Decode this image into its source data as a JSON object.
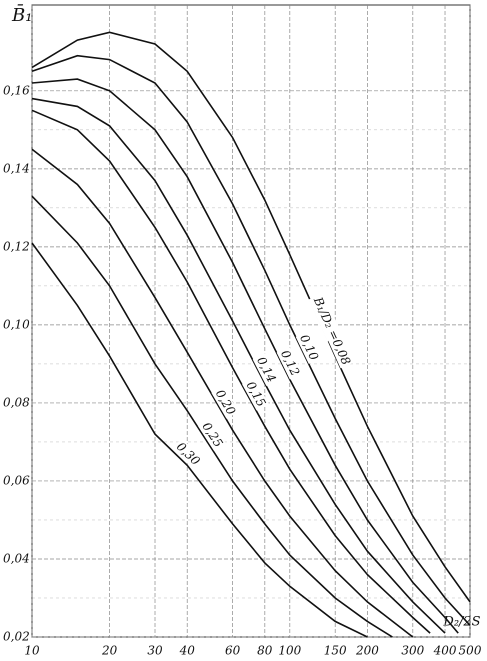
{
  "chart_data": {
    "type": "line",
    "y_label": "B̄₁",
    "x_label": "D₂/2S",
    "annotation": "B₁/D₂ =",
    "log_x": true,
    "grid": true,
    "xlim": [
      10,
      500
    ],
    "ylim": [
      0.02,
      0.182
    ],
    "xticks": [
      10,
      20,
      30,
      40,
      60,
      80,
      100,
      150,
      200,
      300,
      400,
      500
    ],
    "yticks": [
      {
        "value": 0.02,
        "label": "0,02"
      },
      {
        "value": 0.04,
        "label": "0,04"
      },
      {
        "value": 0.06,
        "label": "0,06"
      },
      {
        "value": 0.08,
        "label": "0,08"
      },
      {
        "value": 0.1,
        "label": "0,10"
      },
      {
        "value": 0.12,
        "label": "0,12"
      },
      {
        "value": 0.14,
        "label": "0,14"
      },
      {
        "value": 0.16,
        "label": "0,16"
      }
    ],
    "series": [
      {
        "name": "0,08",
        "color": "#111",
        "x": [
          10,
          15,
          20,
          30,
          40,
          60,
          80,
          100,
          150,
          200,
          300,
          400,
          500
        ],
        "values": [
          0.166,
          0.173,
          0.175,
          0.172,
          0.165,
          0.148,
          0.132,
          0.118,
          0.092,
          0.074,
          0.051,
          0.038,
          0.029
        ]
      },
      {
        "name": "0,10",
        "color": "#111",
        "x": [
          10,
          15,
          20,
          30,
          40,
          60,
          80,
          100,
          150,
          200,
          300,
          400,
          500
        ],
        "values": [
          0.165,
          0.169,
          0.168,
          0.162,
          0.152,
          0.131,
          0.114,
          0.1,
          0.076,
          0.06,
          0.041,
          0.03,
          0.023
        ]
      },
      {
        "name": "0,12",
        "color": "#111",
        "x": [
          10,
          15,
          20,
          30,
          40,
          60,
          80,
          100,
          150,
          200,
          300,
          400,
          450
        ],
        "values": [
          0.162,
          0.163,
          0.16,
          0.15,
          0.138,
          0.116,
          0.099,
          0.086,
          0.064,
          0.05,
          0.034,
          0.025,
          0.021
        ]
      },
      {
        "name": "0,14",
        "color": "#111",
        "x": [
          10,
          15,
          20,
          30,
          40,
          60,
          80,
          100,
          150,
          200,
          300,
          400
        ],
        "values": [
          0.158,
          0.156,
          0.151,
          0.137,
          0.123,
          0.101,
          0.085,
          0.073,
          0.054,
          0.042,
          0.029,
          0.021
        ]
      },
      {
        "name": "0,15",
        "color": "#111",
        "x": [
          10,
          15,
          20,
          30,
          40,
          60,
          80,
          100,
          150,
          200,
          300,
          350
        ],
        "values": [
          0.155,
          0.15,
          0.142,
          0.125,
          0.111,
          0.089,
          0.074,
          0.063,
          0.046,
          0.036,
          0.025,
          0.021
        ]
      },
      {
        "name": "0,20",
        "color": "#111",
        "x": [
          10,
          15,
          20,
          30,
          40,
          60,
          80,
          100,
          150,
          200,
          300
        ],
        "values": [
          0.145,
          0.136,
          0.126,
          0.107,
          0.093,
          0.073,
          0.06,
          0.051,
          0.037,
          0.029,
          0.02
        ]
      },
      {
        "name": "0,25",
        "color": "#111",
        "x": [
          10,
          15,
          20,
          30,
          40,
          60,
          80,
          100,
          150,
          200,
          250
        ],
        "values": [
          0.133,
          0.121,
          0.11,
          0.09,
          0.078,
          0.06,
          0.049,
          0.041,
          0.03,
          0.024,
          0.02
        ]
      },
      {
        "name": "0,30",
        "color": "#111",
        "x": [
          10,
          15,
          20,
          30,
          40,
          60,
          80,
          100,
          150,
          200
        ],
        "values": [
          0.121,
          0.105,
          0.092,
          0.072,
          0.064,
          0.049,
          0.039,
          0.033,
          0.024,
          0.02
        ]
      }
    ]
  }
}
